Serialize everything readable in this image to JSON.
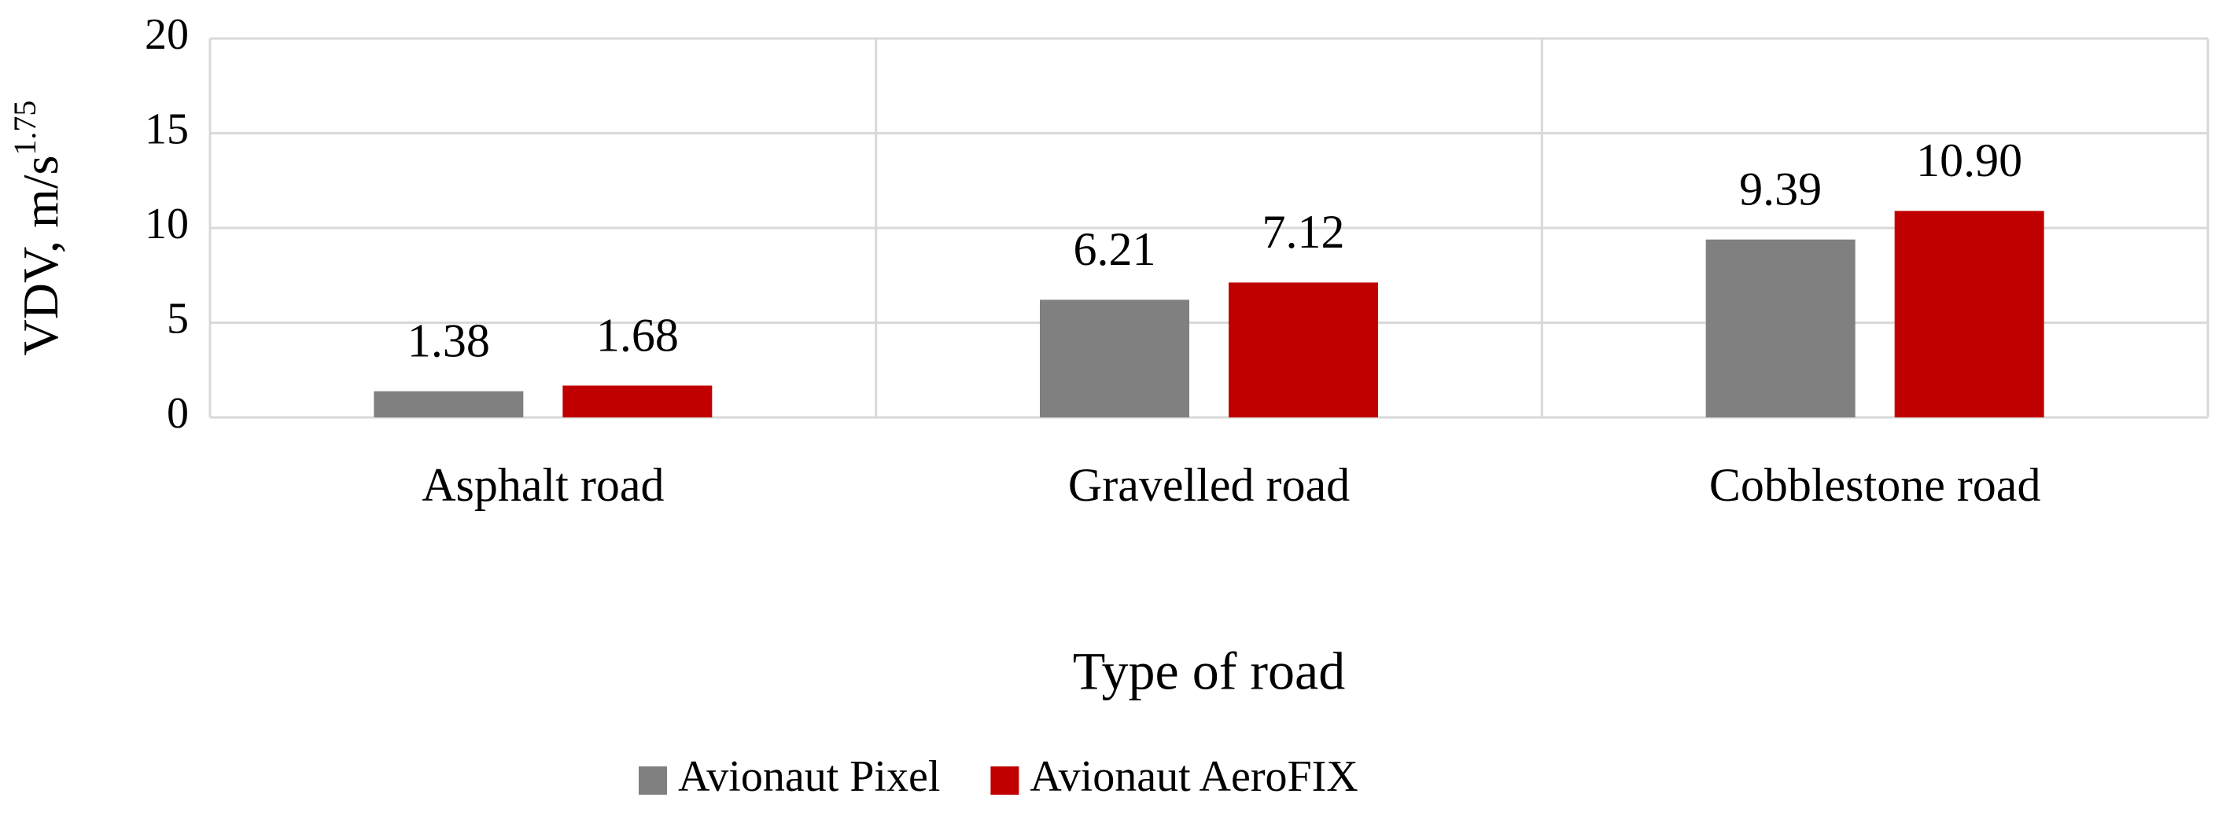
{
  "chart_data": {
    "type": "bar",
    "y_label": {
      "text": "VDV, m/s",
      "superscript": "1.75"
    },
    "x_label": "Type  of road",
    "categories": [
      "Asphalt road",
      "Gravelled road",
      "Cobblestone road"
    ],
    "series": [
      {
        "name": "Avionaut Pixel",
        "color": "#808080",
        "values": [
          1.38,
          6.21,
          9.39
        ],
        "value_labels": [
          "1.38",
          "6.21",
          "9.39"
        ]
      },
      {
        "name": "Avionaut AeroFIX",
        "color": "#c00000",
        "values": [
          1.68,
          7.12,
          10.9
        ],
        "value_labels": [
          "1.68",
          "7.12",
          "10.90"
        ]
      }
    ],
    "ylim": [
      0,
      20
    ],
    "yticks": [
      0,
      5,
      10,
      15,
      20
    ],
    "grid": true,
    "legend": "bottom"
  }
}
